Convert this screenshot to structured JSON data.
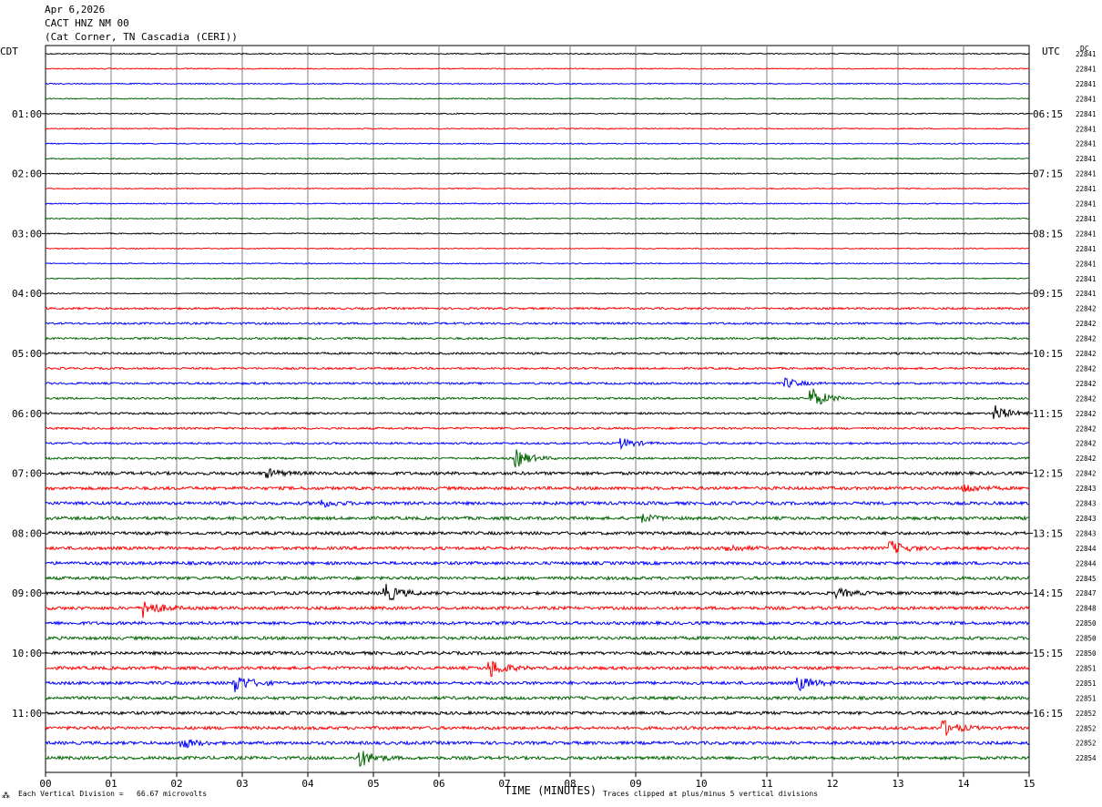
{
  "header": {
    "date": "Apr 6,2026",
    "station": "CACT HNZ NM 00",
    "location": "(Cat Corner, TN Cascadia (CERI))"
  },
  "left_axis_title": "CDT",
  "right_axis_title": "UTC",
  "dc_header": "DC",
  "footer": {
    "left_note_mark": "⁂",
    "left_note": "Each Vertical Division =   66.67 microvolts",
    "right_note": "Traces clipped at plus/minus 5 vertical divisions"
  },
  "colors": {
    "trace_cycle": [
      "#000000",
      "#ff0000",
      "#0000ff",
      "#006400"
    ],
    "grid": "#808080"
  },
  "chart_data": {
    "type": "line",
    "xlabel": "TIME (MINUTES)",
    "xlim": [
      0,
      15
    ],
    "x_ticks": [
      "00",
      "01",
      "02",
      "03",
      "04",
      "05",
      "06",
      "07",
      "08",
      "09",
      "10",
      "11",
      "12",
      "13",
      "14",
      "15"
    ],
    "row_count": 48,
    "row_minutes": 15,
    "left_time_labels": [
      {
        "row": 4,
        "label": "01:00"
      },
      {
        "row": 8,
        "label": "02:00"
      },
      {
        "row": 12,
        "label": "03:00"
      },
      {
        "row": 16,
        "label": "04:00"
      },
      {
        "row": 20,
        "label": "05:00"
      },
      {
        "row": 24,
        "label": "06:00"
      },
      {
        "row": 28,
        "label": "07:00"
      },
      {
        "row": 32,
        "label": "08:00"
      },
      {
        "row": 36,
        "label": "09:00"
      },
      {
        "row": 40,
        "label": "10:00"
      },
      {
        "row": 44,
        "label": "11:00"
      }
    ],
    "right_time_labels": [
      {
        "row": 4,
        "label": "06:15"
      },
      {
        "row": 8,
        "label": "07:15"
      },
      {
        "row": 12,
        "label": "08:15"
      },
      {
        "row": 16,
        "label": "09:15"
      },
      {
        "row": 20,
        "label": "10:15"
      },
      {
        "row": 24,
        "label": "11:15"
      },
      {
        "row": 28,
        "label": "12:15"
      },
      {
        "row": 32,
        "label": "13:15"
      },
      {
        "row": 36,
        "label": "14:15"
      },
      {
        "row": 40,
        "label": "15:15"
      },
      {
        "row": 44,
        "label": "16:15"
      }
    ],
    "dc_offsets": [
      "22841",
      "22841",
      "22841",
      "22841",
      "22841",
      "22841",
      "22841",
      "22841",
      "22841",
      "22841",
      "22841",
      "22841",
      "22841",
      "22841",
      "22841",
      "22841",
      "22841",
      "22842",
      "22842",
      "22842",
      "22842",
      "22842",
      "22842",
      "22842",
      "22842",
      "22842",
      "22842",
      "22842",
      "22842",
      "22843",
      "22843",
      "22843",
      "22843",
      "22844",
      "22844",
      "22845",
      "22847",
      "22848",
      "22850",
      "22850",
      "22850",
      "22851",
      "22851",
      "22851",
      "22852",
      "22852",
      "22852",
      "22854"
    ],
    "events": [
      {
        "row": 28,
        "minute": 3.4,
        "amp": 4
      },
      {
        "row": 30,
        "minute": 4.2,
        "amp": 4
      },
      {
        "row": 33,
        "minute": 12.9,
        "amp": 7
      },
      {
        "row": 33,
        "minute": 10.4,
        "amp": 4
      },
      {
        "row": 36,
        "minute": 5.2,
        "amp": 9
      },
      {
        "row": 37,
        "minute": 1.5,
        "amp": 10
      },
      {
        "row": 41,
        "minute": 6.8,
        "amp": 9
      },
      {
        "row": 42,
        "minute": 2.9,
        "amp": 10
      },
      {
        "row": 42,
        "minute": 11.5,
        "amp": 7
      },
      {
        "row": 45,
        "minute": 13.7,
        "amp": 8
      },
      {
        "row": 47,
        "minute": 4.8,
        "amp": 9
      },
      {
        "row": 23,
        "minute": 11.7,
        "amp": 11
      },
      {
        "row": 24,
        "minute": 14.5,
        "amp": 8
      },
      {
        "row": 27,
        "minute": 7.2,
        "amp": 9
      },
      {
        "row": 26,
        "minute": 8.8,
        "amp": 5
      },
      {
        "row": 22,
        "minute": 11.3,
        "amp": 5
      },
      {
        "row": 36,
        "minute": 12.1,
        "amp": 4
      },
      {
        "row": 46,
        "minute": 2.1,
        "amp": 5
      },
      {
        "row": 31,
        "minute": 9.1,
        "amp": 4
      },
      {
        "row": 29,
        "minute": 14.0,
        "amp": 5
      }
    ]
  }
}
